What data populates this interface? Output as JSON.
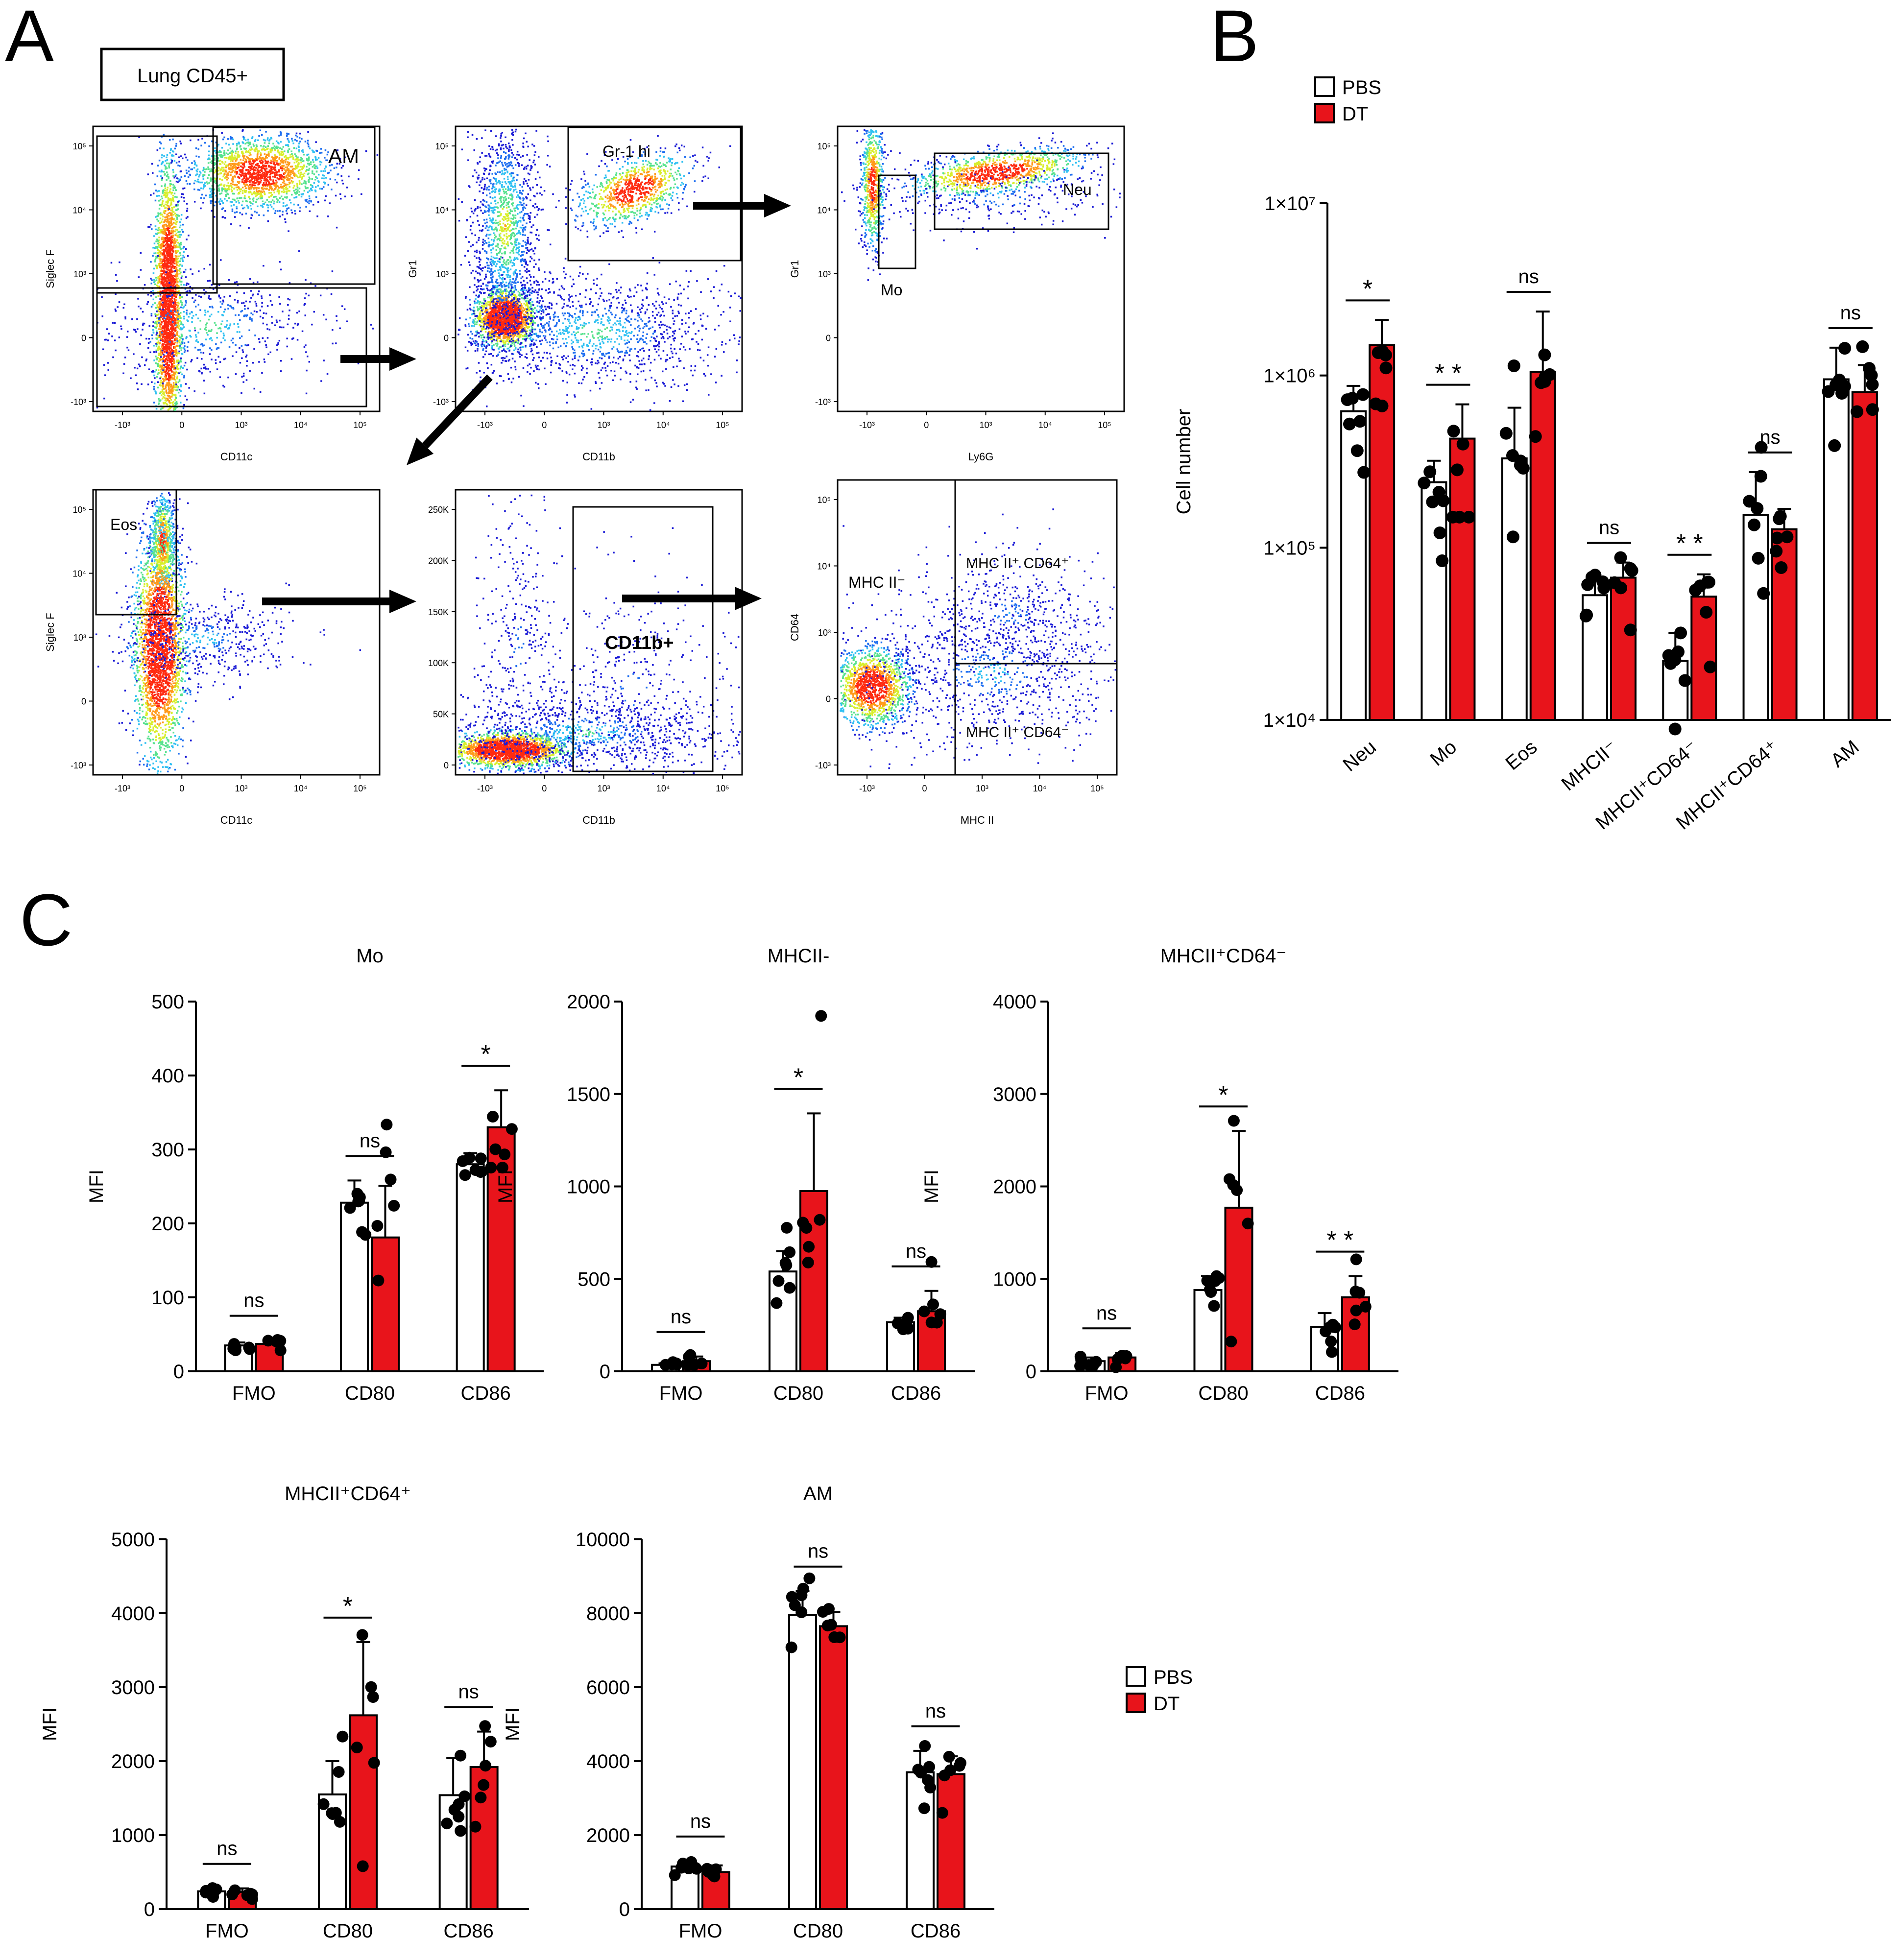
{
  "panel_labels": {
    "a": "A",
    "b": "B",
    "c": "C"
  },
  "gating": {
    "title": "Lung CD45+",
    "ticks_log": [
      "10⁵",
      "10⁴",
      "10³",
      "0",
      "-10³"
    ],
    "ticks_lin": [
      "250K",
      "200K",
      "150K",
      "100K",
      "50K",
      "0"
    ],
    "ticks_log_x": [
      "-10³",
      "0",
      "10³",
      "10⁴",
      "10⁵"
    ],
    "plots": [
      {
        "xlabel": "CD11c",
        "ylabel": "Siglec F",
        "gates": [
          "AM"
        ]
      },
      {
        "xlabel": "CD11b",
        "ylabel": "Gr1",
        "gates": [
          "Gr-1 hi"
        ]
      },
      {
        "xlabel": "Ly6G",
        "ylabel": "Gr1",
        "gates": [
          "Mo",
          "Neu"
        ]
      },
      {
        "xlabel": "CD11c",
        "ylabel": "Siglec F",
        "gates": [
          "Eos"
        ]
      },
      {
        "xlabel": "CD11b",
        "ylabel": "",
        "gates": [
          "CD11b+"
        ]
      },
      {
        "xlabel": "MHC II",
        "ylabel": "CD64",
        "gates": [
          "MHC II⁻",
          "MHC II⁺ CD64⁺",
          "MHC II⁺ CD64⁻"
        ]
      }
    ]
  },
  "legend": {
    "pbs": "PBS",
    "dt": "DT"
  },
  "colors": {
    "pbs": "#ffffff",
    "dt": "#e8141b",
    "axis": "#000000"
  },
  "chart_data": [
    {
      "id": "B",
      "type": "bar",
      "title": "",
      "ylabel": "Cell number",
      "scale": "log",
      "ylim": [
        10000,
        10000000
      ],
      "yticks": [
        "1×10⁷",
        "1×10⁶",
        "1×10⁵",
        "1×10⁴"
      ],
      "categories": [
        "Neu",
        "Mo",
        "Eos",
        "MHCII⁻",
        "MHCII⁺CD64⁻",
        "MHCII⁺CD64⁺",
        "AM"
      ],
      "series": [
        {
          "name": "PBS",
          "values": [
            620000,
            240000,
            330000,
            53000,
            22000,
            155000,
            950000
          ],
          "err": [
            250000,
            80000,
            320000,
            12000,
            10000,
            120000,
            500000
          ]
        },
        {
          "name": "DT",
          "values": [
            1500000,
            430000,
            1050000,
            67000,
            52000,
            128000,
            800000
          ],
          "err": [
            600000,
            250000,
            1300000,
            15000,
            18000,
            40000,
            350000
          ]
        }
      ],
      "significance": [
        "*",
        "* *",
        "ns",
        "ns",
        "* *",
        "ns",
        "ns"
      ]
    },
    {
      "id": "C1",
      "type": "bar",
      "title": "Mo",
      "ylabel": "MFI",
      "ylim": [
        0,
        500
      ],
      "yticks": [
        "500",
        "400",
        "300",
        "200",
        "100",
        "0"
      ],
      "categories": [
        "FMO",
        "CD80",
        "CD86"
      ],
      "series": [
        {
          "name": "PBS",
          "values": [
            35,
            228,
            280
          ],
          "err": [
            4,
            30,
            15
          ]
        },
        {
          "name": "DT",
          "values": [
            37,
            181,
            330
          ],
          "err": [
            5,
            70,
            50
          ]
        }
      ],
      "significance": [
        "ns",
        "ns",
        "*"
      ]
    },
    {
      "id": "C2",
      "type": "bar",
      "title": "MHCII-",
      "ylabel": "MFI",
      "ylim": [
        0,
        2000
      ],
      "yticks": [
        "2000",
        "1500",
        "1000",
        "500",
        "0"
      ],
      "categories": [
        "FMO",
        "CD80",
        "CD86"
      ],
      "series": [
        {
          "name": "PBS",
          "values": [
            35,
            540,
            265
          ],
          "err": [
            8,
            110,
            25
          ]
        },
        {
          "name": "DT",
          "values": [
            55,
            975,
            325
          ],
          "err": [
            25,
            420,
            110
          ]
        }
      ],
      "significance": [
        "ns",
        "*",
        "ns"
      ]
    },
    {
      "id": "C3",
      "type": "bar",
      "title": "MHCII⁺CD64⁻",
      "ylabel": "MFI",
      "ylim": [
        0,
        4000
      ],
      "yticks": [
        "4000",
        "3000",
        "2000",
        "1000",
        "0"
      ],
      "categories": [
        "FMO",
        "CD80",
        "CD86"
      ],
      "series": [
        {
          "name": "PBS",
          "values": [
            110,
            880,
            480
          ],
          "err": [
            40,
            150,
            150
          ]
        },
        {
          "name": "DT",
          "values": [
            150,
            1770,
            800
          ],
          "err": [
            50,
            830,
            230
          ]
        }
      ],
      "significance": [
        "ns",
        "*",
        "* *"
      ]
    },
    {
      "id": "C4",
      "type": "bar",
      "title": "MHCII⁺CD64⁺",
      "ylabel": "MFI",
      "ylim": [
        0,
        5000
      ],
      "yticks": [
        "5000",
        "4000",
        "3000",
        "2000",
        "1000",
        "0"
      ],
      "categories": [
        "FMO",
        "CD80",
        "CD86"
      ],
      "series": [
        {
          "name": "PBS",
          "values": [
            240,
            1550,
            1540
          ],
          "err": [
            40,
            450,
            500
          ]
        },
        {
          "name": "DT",
          "values": [
            230,
            2620,
            1920
          ],
          "err": [
            50,
            990,
            480
          ]
        }
      ],
      "significance": [
        "ns",
        "*",
        "ns"
      ]
    },
    {
      "id": "C5",
      "type": "bar",
      "title": "AM",
      "ylabel": "MFI",
      "ylim": [
        0,
        10000
      ],
      "yticks": [
        "10000",
        "8000",
        "6000",
        "4000",
        "2000",
        "0"
      ],
      "categories": [
        "FMO",
        "CD80",
        "CD86"
      ],
      "series": [
        {
          "name": "PBS",
          "values": [
            1150,
            7950,
            3700
          ],
          "err": [
            150,
            650,
            580
          ]
        },
        {
          "name": "DT",
          "values": [
            1000,
            7650,
            3650
          ],
          "err": [
            180,
            380,
            480
          ]
        }
      ],
      "significance": [
        "ns",
        "ns",
        "ns"
      ]
    }
  ]
}
